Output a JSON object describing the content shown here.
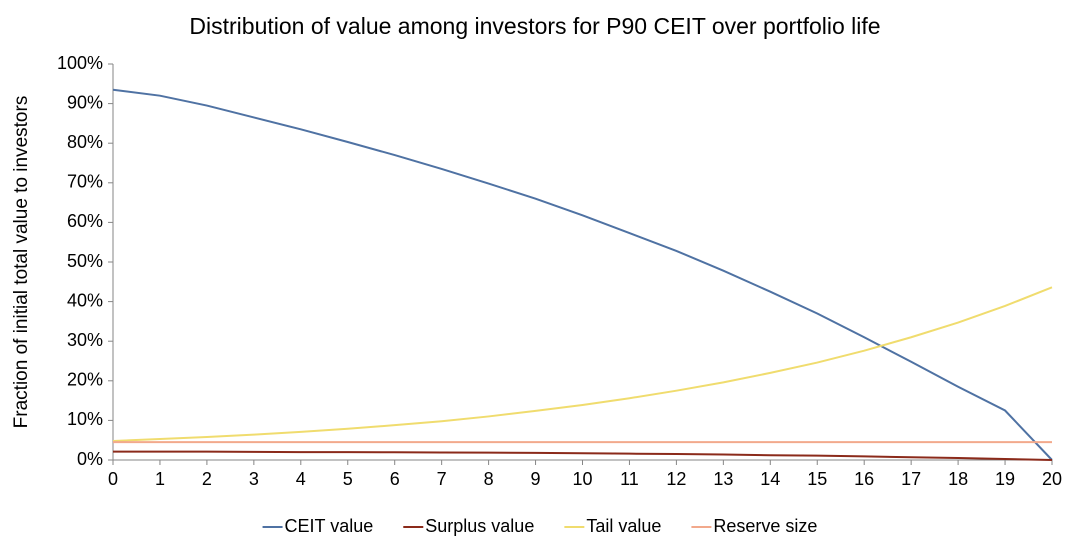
{
  "chart_data": {
    "type": "line",
    "title": "Distribution of value among investors for P90 CEIT over portfolio life",
    "y_label": "Fraction of initial total value to investors",
    "x": [
      0,
      1,
      2,
      3,
      4,
      5,
      6,
      7,
      8,
      9,
      10,
      11,
      12,
      13,
      14,
      15,
      16,
      17,
      18,
      19,
      20
    ],
    "series": [
      {
        "name": "CEIT value",
        "color": "#4f72a3",
        "values": [
          93.5,
          92,
          89.5,
          86.5,
          83.5,
          80.3,
          77,
          73.5,
          69.8,
          66,
          61.8,
          57.3,
          52.8,
          47.8,
          42.5,
          37,
          31,
          24.8,
          18.5,
          12.5,
          0
        ]
      },
      {
        "name": "Surplus value",
        "color": "#8b2a1a",
        "values": [
          2.1,
          2.1,
          2.1,
          2.05,
          2,
          2,
          1.95,
          1.9,
          1.85,
          1.8,
          1.7,
          1.6,
          1.5,
          1.4,
          1.2,
          1.1,
          0.9,
          0.7,
          0.5,
          0.25,
          0
        ]
      },
      {
        "name": "Tail value",
        "color": "#f0dc6e",
        "values": [
          4.8,
          5.3,
          5.8,
          6.4,
          7.1,
          7.9,
          8.8,
          9.8,
          11,
          12.4,
          13.9,
          15.6,
          17.5,
          19.6,
          22,
          24.6,
          27.6,
          31,
          34.7,
          38.9,
          43.6
        ]
      },
      {
        "name": "Reserve size",
        "color": "#f2a98c",
        "values": [
          4.5,
          4.5,
          4.5,
          4.5,
          4.5,
          4.5,
          4.5,
          4.5,
          4.5,
          4.5,
          4.5,
          4.5,
          4.5,
          4.5,
          4.5,
          4.5,
          4.5,
          4.5,
          4.5,
          4.5,
          4.5
        ]
      }
    ],
    "xlim": [
      0,
      20
    ],
    "xticks": [
      0,
      1,
      2,
      3,
      4,
      5,
      6,
      7,
      8,
      9,
      10,
      11,
      12,
      13,
      14,
      15,
      16,
      17,
      18,
      19,
      20
    ],
    "ylim": [
      0,
      100
    ],
    "yticks": [
      {
        "value": 0,
        "label": "0%"
      },
      {
        "value": 10,
        "label": "10%"
      },
      {
        "value": 20,
        "label": "20%"
      },
      {
        "value": 30,
        "label": "30%"
      },
      {
        "value": 40,
        "label": "40%"
      },
      {
        "value": 50,
        "label": "50%"
      },
      {
        "value": 60,
        "label": "60%"
      },
      {
        "value": 70,
        "label": "70%"
      },
      {
        "value": 80,
        "label": "80%"
      },
      {
        "value": 90,
        "label": "90%"
      },
      {
        "value": 100,
        "label": "100%"
      }
    ],
    "grid": false,
    "legend": "bottom"
  }
}
